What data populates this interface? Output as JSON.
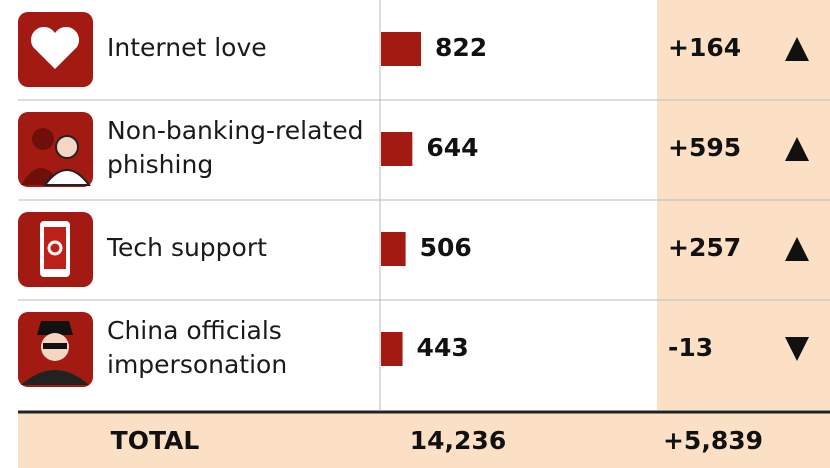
{
  "table": {
    "rows": [
      {
        "label": [
          "Internet love"
        ],
        "value": 822,
        "change": "+164",
        "direction": "up"
      },
      {
        "label": [
          "Non-banking-related",
          "phishing"
        ],
        "value": 644,
        "change": "+595",
        "direction": "up"
      },
      {
        "label": [
          "Tech support"
        ],
        "value": 506,
        "change": "+257",
        "direction": "up"
      },
      {
        "label": [
          "China officials",
          "impersonation"
        ],
        "value": 443,
        "change": "-13",
        "direction": "down"
      }
    ],
    "total": {
      "label": "TOTAL",
      "value": "14,236",
      "change": "+5,839"
    },
    "bar_color": "#a31a12",
    "highlight_color": "#fbe0c6"
  }
}
